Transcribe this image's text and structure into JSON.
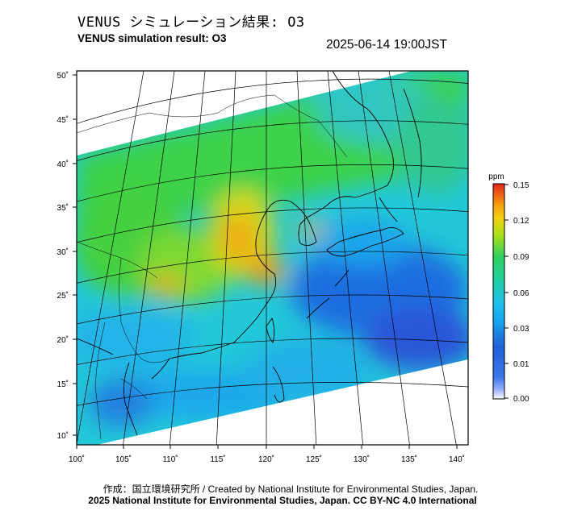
{
  "title_jp": "VENUS シミュレーション結果: O3",
  "title_en": "VENUS simulation result: O3",
  "timestamp": "2025-06-14 19:00JST",
  "lat_labels": [
    "50˚",
    "45˚",
    "40˚",
    "35˚",
    "30˚",
    "25˚",
    "20˚",
    "15˚",
    "10˚"
  ],
  "lon_labels": [
    "100˚",
    "105˚",
    "110˚",
    "115˚",
    "120˚",
    "125˚",
    "130˚",
    "135˚",
    "140˚"
  ],
  "colorbar": {
    "unit": "ppm",
    "ticks": [
      "0.15",
      "0.12",
      "0.09",
      "0.06",
      "0.03",
      "0.01",
      "0.00"
    ]
  },
  "colors": {
    "low": "#ffffff",
    "c001": "#1f5fd8",
    "c003": "#20c0ea",
    "c006": "#2fd060",
    "c009": "#c8e020",
    "c012": "#f6a30c",
    "c015": "#e4241c"
  },
  "credit_line1": "作成：国立環境研究所 / Created by National Institute for Environmental Studies, Japan.",
  "credit_line2": "2025 National Institute for Environmental Studies, Japan. CC BY-NC 4.0 International"
}
